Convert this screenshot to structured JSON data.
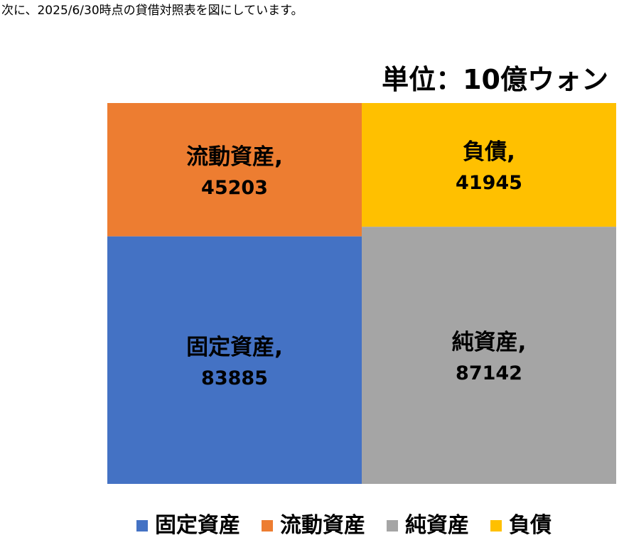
{
  "intro_text": "次に、2025/6/30時点の貸借対照表を図にしています。",
  "chart_data": {
    "type": "treemap",
    "title": "単位：10億ウォン",
    "columns": [
      {
        "items": [
          {
            "name": "流動資産",
            "value": 45203,
            "label": "流動資産,",
            "value_label": "45203",
            "color": "#ED7D31"
          },
          {
            "name": "固定資産",
            "value": 83885,
            "label": "固定資産,",
            "value_label": "83885",
            "color": "#4472C4"
          }
        ]
      },
      {
        "items": [
          {
            "name": "負債",
            "value": 41945,
            "label": "負債,",
            "value_label": "41945",
            "color": "#FFC000"
          },
          {
            "name": "純資産",
            "value": 87142,
            "label": "純資産,",
            "value_label": "87142",
            "color": "#A5A5A5"
          }
        ]
      }
    ],
    "legend": [
      {
        "name": "固定資産",
        "color": "#4472C4"
      },
      {
        "name": "流動資産",
        "color": "#ED7D31"
      },
      {
        "name": "純資産",
        "color": "#A5A5A5"
      },
      {
        "name": "負債",
        "color": "#FFC000"
      }
    ],
    "legend_position": "bottom"
  }
}
